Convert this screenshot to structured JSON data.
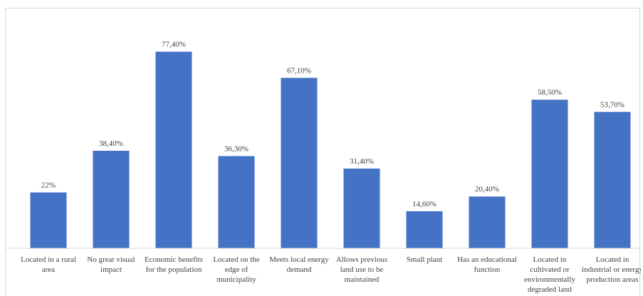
{
  "chart_data": {
    "type": "bar",
    "categories": [
      [
        "Located in a rural",
        "area"
      ],
      [
        "No great visual",
        "impact"
      ],
      [
        "Economic benefits",
        "for the population"
      ],
      [
        "Located on the",
        "edge of",
        "municipality"
      ],
      [
        "Meets local energy",
        "demand"
      ],
      [
        "Allows previous",
        "land use to be",
        "maintained"
      ],
      [
        "Small plant"
      ],
      [
        "Has an educational",
        "function"
      ],
      [
        "Located in",
        "cultivated or",
        "environmentally",
        "degraded land"
      ],
      [
        "Located in",
        "industrial or energy",
        "production areas"
      ]
    ],
    "values": [
      22,
      38.4,
      77.4,
      36.3,
      67.1,
      31.4,
      14.6,
      20.4,
      58.5,
      53.7
    ],
    "data_labels": [
      "22%",
      "38,40%",
      "77,40%",
      "36,30%",
      "67,10%",
      "31,40%",
      "14,60%",
      "20,40%",
      "58,50%",
      "53,70%"
    ],
    "ylim": [
      0,
      80
    ],
    "bar_color": "#4472C4",
    "grid": false,
    "legend": "none"
  }
}
